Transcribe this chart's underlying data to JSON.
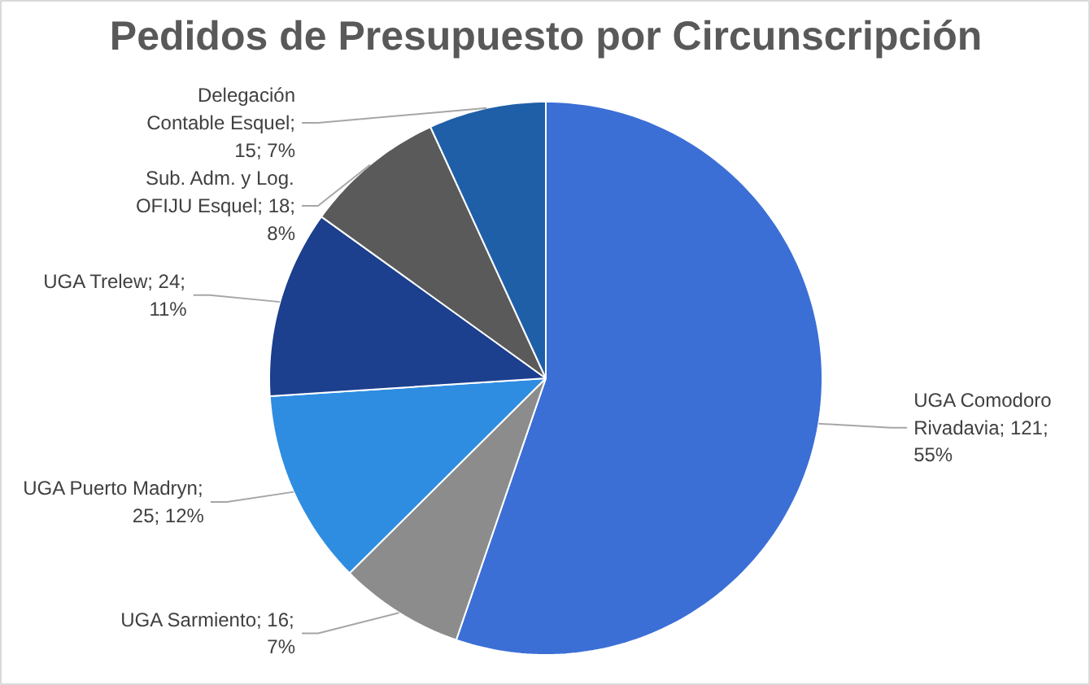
{
  "chart_data": {
    "type": "pie",
    "title": "Pedidos de Presupuesto por Circunscripción",
    "categories": [
      "UGA Comodoro Rivadavia",
      "UGA Sarmiento",
      "UGA Puerto Madryn",
      "UGA Trelew",
      "Sub. Adm. y Log. OFIJU Esquel",
      "Delegación Contable Esquel"
    ],
    "values": [
      121,
      16,
      25,
      24,
      18,
      15
    ],
    "value_labels": [
      "; 121; 55%",
      "; 16; 7%",
      "; 25; 12%",
      "; 24; 11%",
      "; 18; 8%",
      "; 15; 7%"
    ],
    "colors": [
      "#3b6fd6",
      "#8c8c8c",
      "#2e8de0",
      "#1c3f8e",
      "#5a5a5a",
      "#1f5fa8"
    ]
  }
}
